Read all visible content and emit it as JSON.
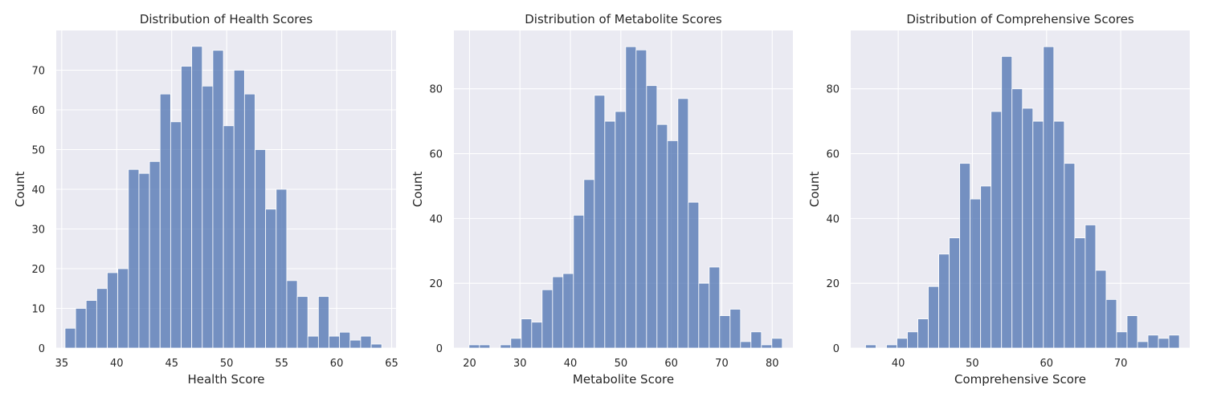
{
  "chart_data": [
    {
      "type": "bar",
      "title": "Distribution of Health Scores",
      "xlabel": "Health Score",
      "ylabel": "Count",
      "xlim": [
        34.5,
        65.4
      ],
      "ylim": [
        0,
        80
      ],
      "xticks": [
        35,
        40,
        45,
        50,
        55,
        60,
        65
      ],
      "yticks": [
        0,
        10,
        20,
        30,
        40,
        50,
        60,
        70
      ],
      "bin_start": 35.3,
      "bin_width": 0.96,
      "values": [
        5,
        10,
        12,
        15,
        19,
        20,
        45,
        44,
        47,
        64,
        57,
        71,
        76,
        66,
        75,
        56,
        70,
        64,
        50,
        35,
        40,
        17,
        13,
        3,
        13,
        3,
        4,
        2,
        3,
        1
      ],
      "bar_color": "#4c72b0",
      "grid": true
    },
    {
      "type": "bar",
      "title": "Distribution of Metabolite Scores",
      "xlabel": "Metabolite Score",
      "ylabel": "Count",
      "xlim": [
        16.9,
        84.1
      ],
      "ylim": [
        0,
        98
      ],
      "xticks": [
        20,
        30,
        40,
        50,
        60,
        70,
        80
      ],
      "yticks": [
        0,
        20,
        40,
        60,
        80
      ],
      "bin_start": 19.9,
      "bin_width": 2.07,
      "values": [
        1,
        1,
        0,
        1,
        3,
        9,
        8,
        18,
        22,
        23,
        41,
        52,
        78,
        70,
        73,
        93,
        92,
        81,
        69,
        64,
        77,
        45,
        20,
        25,
        10,
        12,
        2,
        5,
        1,
        3
      ],
      "bar_color": "#4c72b0",
      "grid": true
    },
    {
      "type": "bar",
      "title": "Distribution of Comprehensive Scores",
      "xlabel": "Comprehensive Score",
      "ylabel": "Count",
      "xlim": [
        33.6,
        79.3
      ],
      "ylim": [
        0,
        98
      ],
      "xticks": [
        40,
        50,
        60,
        70
      ],
      "yticks": [
        0,
        20,
        40,
        60,
        80
      ],
      "bin_start": 35.6,
      "bin_width": 1.41,
      "values": [
        1,
        0,
        1,
        3,
        5,
        9,
        19,
        29,
        34,
        57,
        46,
        50,
        73,
        90,
        80,
        74,
        70,
        93,
        70,
        57,
        34,
        38,
        24,
        15,
        5,
        10,
        2,
        4,
        3,
        4
      ],
      "bar_color": "#4c72b0",
      "grid": true
    }
  ]
}
